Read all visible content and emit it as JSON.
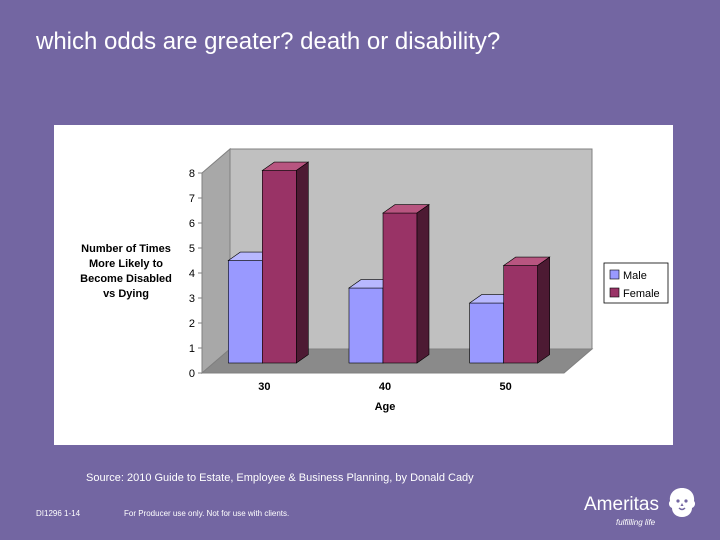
{
  "slide": {
    "title": "which odds are greater?  death or disability?",
    "source": "Source: 2010 Guide to Estate, Employee & Business Planning, by Donald Cady",
    "code": "DI1296 1-14",
    "note": "For Producer use only. Not for use with clients.",
    "logo_name": "Ameritas",
    "logo_tagline": "fulfilling life"
  },
  "colors": {
    "background": "#7366a2",
    "male": "#9999ff",
    "female": "#993366"
  },
  "chart_data": {
    "type": "bar",
    "title": "",
    "xlabel": "Age",
    "ylabel": "Number of Times More Likely to Become Disabled vs Dying",
    "ylabel_lines": [
      "Number of Times",
      "More Likely to",
      "Become Disabled",
      "vs Dying"
    ],
    "categories": [
      "30",
      "40",
      "50"
    ],
    "ylim": [
      0,
      8
    ],
    "yticks": [
      "0",
      "1",
      "2",
      "3",
      "4",
      "5",
      "6",
      "7",
      "8"
    ],
    "grid": false,
    "legend_position": "right",
    "series": [
      {
        "name": "Male",
        "values": [
          4.1,
          3.0,
          2.4
        ]
      },
      {
        "name": "Female",
        "values": [
          7.7,
          6.0,
          3.9
        ]
      }
    ]
  }
}
